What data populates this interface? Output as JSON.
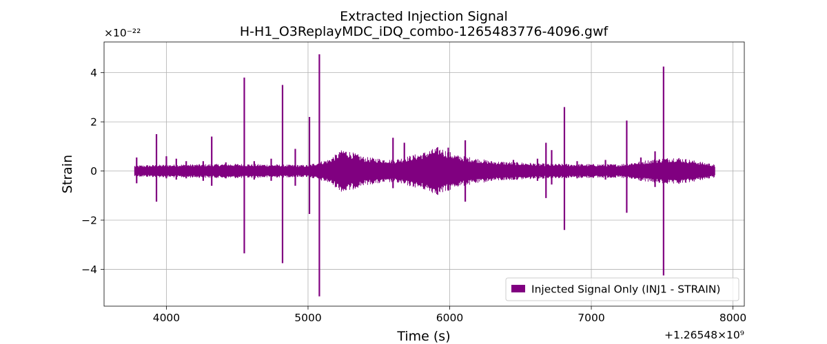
{
  "chart_data": {
    "type": "line",
    "title": "Extracted Injection Signal",
    "subtitle": "H-H1_O3ReplayMDC_iDQ_combo-1265483776-4096.gwf",
    "xlabel": "Time (s)",
    "ylabel": "Strain",
    "x_offset_label": "+1.26548×10⁹",
    "y_scale_label": "×10⁻²²",
    "xlim": [
      3560,
      8080
    ],
    "ylim": [
      -5.5,
      5.25
    ],
    "x_ticks": [
      4000,
      5000,
      6000,
      7000,
      8000
    ],
    "y_ticks": [
      -4,
      -2,
      0,
      2,
      4
    ],
    "y_tick_labels": [
      "−4",
      "−2",
      "0",
      "2",
      "4"
    ],
    "grid": true,
    "legend_position": "lower-right",
    "series": [
      {
        "name": "Injected Signal Only (INJ1 - STRAIN)",
        "color": "#800080",
        "x_range": [
          3776,
          7872
        ],
        "baseline_envelope": [
          {
            "x": 3776,
            "y": 0.14
          },
          {
            "x": 4000,
            "y": 0.16
          },
          {
            "x": 4500,
            "y": 0.18
          },
          {
            "x": 5000,
            "y": 0.15
          },
          {
            "x": 5150,
            "y": 0.3
          },
          {
            "x": 5250,
            "y": 0.55
          },
          {
            "x": 5400,
            "y": 0.35
          },
          {
            "x": 5600,
            "y": 0.28
          },
          {
            "x": 5800,
            "y": 0.45
          },
          {
            "x": 5920,
            "y": 0.6
          },
          {
            "x": 6050,
            "y": 0.4
          },
          {
            "x": 6300,
            "y": 0.25
          },
          {
            "x": 6700,
            "y": 0.18
          },
          {
            "x": 7200,
            "y": 0.17
          },
          {
            "x": 7450,
            "y": 0.3
          },
          {
            "x": 7600,
            "y": 0.35
          },
          {
            "x": 7872,
            "y": 0.16
          }
        ],
        "spikes": [
          {
            "x": 3790,
            "max": 0.55,
            "min": -0.5
          },
          {
            "x": 3930,
            "max": 1.5,
            "min": -1.25
          },
          {
            "x": 4000,
            "max": 0.6,
            "min": -0.3
          },
          {
            "x": 4070,
            "max": 0.5,
            "min": -0.35
          },
          {
            "x": 4140,
            "max": 0.4,
            "min": -0.3
          },
          {
            "x": 4260,
            "max": 0.4,
            "min": -0.4
          },
          {
            "x": 4320,
            "max": 1.4,
            "min": -0.6
          },
          {
            "x": 4420,
            "max": 0.35,
            "min": -0.3
          },
          {
            "x": 4550,
            "max": 3.8,
            "min": -3.35
          },
          {
            "x": 4620,
            "max": 0.4,
            "min": -0.35
          },
          {
            "x": 4740,
            "max": 0.5,
            "min": -0.4
          },
          {
            "x": 4820,
            "max": 3.5,
            "min": -3.75
          },
          {
            "x": 4910,
            "max": 0.9,
            "min": -0.6
          },
          {
            "x": 5010,
            "max": 2.2,
            "min": -1.75
          },
          {
            "x": 5080,
            "max": 4.75,
            "min": -5.1
          },
          {
            "x": 5230,
            "max": 0.75,
            "min": -0.6
          },
          {
            "x": 5330,
            "max": 0.55,
            "min": -0.35
          },
          {
            "x": 5600,
            "max": 1.35,
            "min": -0.7
          },
          {
            "x": 5680,
            "max": 1.15,
            "min": -0.5
          },
          {
            "x": 5750,
            "max": 0.55,
            "min": -0.4
          },
          {
            "x": 5850,
            "max": 0.5,
            "min": -0.35
          },
          {
            "x": 5950,
            "max": 0.75,
            "min": -0.45
          },
          {
            "x": 5990,
            "max": 0.95,
            "min": -0.8
          },
          {
            "x": 6110,
            "max": 1.25,
            "min": -1.25
          },
          {
            "x": 6450,
            "max": 0.45,
            "min": -0.35
          },
          {
            "x": 6620,
            "max": 0.5,
            "min": -0.4
          },
          {
            "x": 6680,
            "max": 1.15,
            "min": -1.1
          },
          {
            "x": 6720,
            "max": 0.85,
            "min": -0.55
          },
          {
            "x": 6810,
            "max": 2.6,
            "min": -2.4
          },
          {
            "x": 6900,
            "max": 0.4,
            "min": -0.3
          },
          {
            "x": 7100,
            "max": 0.45,
            "min": -0.35
          },
          {
            "x": 7250,
            "max": 2.05,
            "min": -1.7
          },
          {
            "x": 7350,
            "max": 0.55,
            "min": -0.4
          },
          {
            "x": 7450,
            "max": 0.8,
            "min": -0.65
          },
          {
            "x": 7510,
            "max": 4.25,
            "min": -4.25
          },
          {
            "x": 7830,
            "max": 0.3,
            "min": -0.3
          }
        ]
      }
    ]
  }
}
